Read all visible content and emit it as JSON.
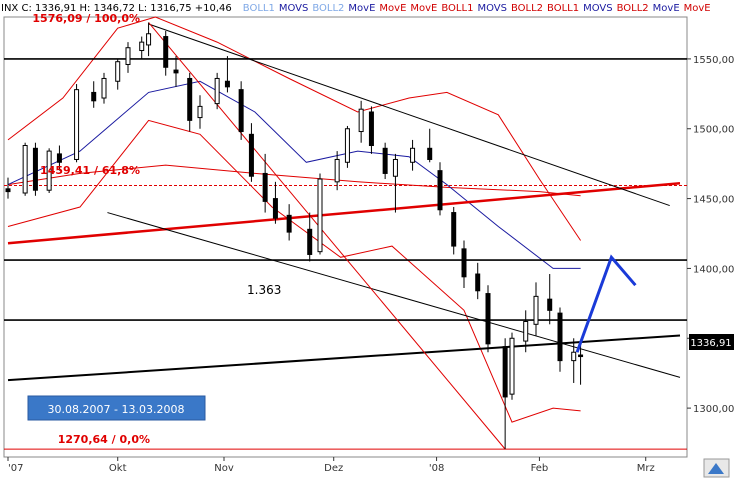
{
  "header": {
    "ohlc": "INX C: 1336,91 H: 1346,72 L: 1316,75 +10,46",
    "indicators": [
      {
        "label": "BOLL1",
        "color": "#7fa8e6"
      },
      {
        "label": "MOVS",
        "color": "#1a1aa0"
      },
      {
        "label": "BOLL2",
        "color": "#7fa8e6"
      },
      {
        "label": "MovE",
        "color": "#1a1aa0"
      },
      {
        "label": "MovE",
        "color": "#d00000"
      },
      {
        "label": "MovE",
        "color": "#d00000"
      },
      {
        "label": "BOLL1",
        "color": "#d00000"
      },
      {
        "label": "MOVS",
        "color": "#1a1aa0"
      },
      {
        "label": "BOLL2",
        "color": "#d00000"
      },
      {
        "label": "BOLL1",
        "color": "#d00000"
      },
      {
        "label": "MOVS",
        "color": "#1a1aa0"
      },
      {
        "label": "BOLL2",
        "color": "#d00000"
      },
      {
        "label": "MovE",
        "color": "#1a1aa0"
      },
      {
        "label": "MovE",
        "color": "#d00000"
      }
    ]
  },
  "last_price_badge": "1336,91",
  "period_badge": "30.08.2007 - 13.03.2008",
  "annotations": {
    "fib_100": "1576,09 / 100,0%",
    "fib_618": "1459,41 / 61,8%",
    "fib_0": "1270,64 / 0,0%",
    "level_label": "1.363"
  },
  "colors": {
    "candle": "#000000",
    "boll_red": "#e00000",
    "movs_blue": "#1a1aa0",
    "forecast_blue": "#1a3ad8",
    "badge_bg": "#3a78c8",
    "badge_text": "#ffffff"
  },
  "chart_data": {
    "type": "candlestick",
    "ylim": [
      1265,
      1580
    ],
    "xlim": [
      "2007-08-30",
      "2008-03-13"
    ],
    "y_ticks": [
      {
        "value": 1300,
        "label": "1300,00"
      },
      {
        "value": 1350,
        "label": "1350,00"
      },
      {
        "value": 1400,
        "label": "1400,00"
      },
      {
        "value": 1450,
        "label": "1450,00"
      },
      {
        "value": 1500,
        "label": "1500,00"
      },
      {
        "value": 1550,
        "label": "1550,00"
      }
    ],
    "x_ticks": [
      {
        "date": "2007-08-30",
        "label": "'07"
      },
      {
        "date": "2007-10-01",
        "label": "Okt"
      },
      {
        "date": "2007-11-01",
        "label": "Nov"
      },
      {
        "date": "2007-12-03",
        "label": "Dez"
      },
      {
        "date": "2008-01-02",
        "label": "'08"
      },
      {
        "date": "2008-02-01",
        "label": "Feb"
      },
      {
        "date": "2008-03-03",
        "label": "Mrz"
      }
    ],
    "horizontal_levels": [
      {
        "value": 1550,
        "color": "#000000"
      },
      {
        "value": 1406,
        "color": "#000000"
      },
      {
        "value": 1363,
        "color": "#000000"
      },
      {
        "value": 1459.41,
        "color": "#e00000",
        "style": "dashed"
      },
      {
        "value": 1270.64,
        "color": "#e00000"
      }
    ],
    "trendlines": [
      {
        "from": [
          "2007-08-30",
          1320
        ],
        "to": [
          "2008-03-13",
          1352
        ],
        "color": "#000000",
        "width": 2
      },
      {
        "from": [
          "2007-08-30",
          1418
        ],
        "to": [
          "2008-03-13",
          1461
        ],
        "color": "#e00000",
        "width": 2.5
      },
      {
        "from": [
          "2007-10-10",
          1575
        ],
        "to": [
          "2008-03-10",
          1445
        ],
        "color": "#000000",
        "width": 1
      },
      {
        "from": [
          "2007-09-28",
          1440
        ],
        "to": [
          "2008-03-13",
          1322
        ],
        "color": "#000000",
        "width": 1
      },
      {
        "from": [
          "2007-10-10",
          1576.09
        ],
        "to": [
          "2008-01-22",
          1270.64
        ],
        "color": "#e00000",
        "width": 1
      }
    ],
    "forecast_path": [
      [
        "2008-02-12",
        1340
      ],
      [
        "2008-02-22",
        1408
      ],
      [
        "2008-02-29",
        1388
      ]
    ],
    "candles": [
      [
        "2007-08-30",
        1457,
        1465,
        1450,
        1455
      ],
      [
        "2007-09-04",
        1454,
        1490,
        1452,
        1488
      ],
      [
        "2007-09-07",
        1486,
        1490,
        1452,
        1456
      ],
      [
        "2007-09-11",
        1456,
        1486,
        1454,
        1484
      ],
      [
        "2007-09-14",
        1482,
        1488,
        1470,
        1476
      ],
      [
        "2007-09-19",
        1478,
        1532,
        1476,
        1528
      ],
      [
        "2007-09-24",
        1526,
        1534,
        1515,
        1520
      ],
      [
        "2007-09-27",
        1522,
        1540,
        1518,
        1536
      ],
      [
        "2007-10-01",
        1534,
        1550,
        1528,
        1548
      ],
      [
        "2007-10-04",
        1546,
        1562,
        1540,
        1558
      ],
      [
        "2007-10-08",
        1556,
        1566,
        1550,
        1562
      ],
      [
        "2007-10-10",
        1560,
        1576,
        1552,
        1568
      ],
      [
        "2007-10-15",
        1566,
        1570,
        1538,
        1544
      ],
      [
        "2007-10-18",
        1542,
        1552,
        1530,
        1540
      ],
      [
        "2007-10-22",
        1536,
        1540,
        1498,
        1506
      ],
      [
        "2007-10-25",
        1508,
        1524,
        1500,
        1516
      ],
      [
        "2007-10-30",
        1518,
        1540,
        1514,
        1536
      ],
      [
        "2007-11-02",
        1534,
        1552,
        1526,
        1530
      ],
      [
        "2007-11-06",
        1528,
        1534,
        1492,
        1498
      ],
      [
        "2007-11-09",
        1496,
        1504,
        1462,
        1466
      ],
      [
        "2007-11-13",
        1468,
        1482,
        1440,
        1448
      ],
      [
        "2007-11-16",
        1450,
        1462,
        1432,
        1436
      ],
      [
        "2007-11-20",
        1438,
        1446,
        1420,
        1426
      ],
      [
        "2007-11-26",
        1428,
        1440,
        1405,
        1410
      ],
      [
        "2007-11-29",
        1412,
        1468,
        1410,
        1464
      ],
      [
        "2007-12-04",
        1462,
        1484,
        1456,
        1478
      ],
      [
        "2007-12-07",
        1476,
        1502,
        1472,
        1500
      ],
      [
        "2007-12-11",
        1498,
        1520,
        1490,
        1514
      ],
      [
        "2007-12-14",
        1512,
        1516,
        1482,
        1488
      ],
      [
        "2007-12-18",
        1486,
        1490,
        1464,
        1468
      ],
      [
        "2007-12-21",
        1466,
        1482,
        1440,
        1478
      ],
      [
        "2007-12-26",
        1476,
        1492,
        1470,
        1486
      ],
      [
        "2007-12-31",
        1486,
        1500,
        1476,
        1478
      ],
      [
        "2008-01-03",
        1470,
        1476,
        1438,
        1442
      ],
      [
        "2008-01-07",
        1440,
        1444,
        1410,
        1416
      ],
      [
        "2008-01-10",
        1414,
        1420,
        1386,
        1394
      ],
      [
        "2008-01-14",
        1396,
        1404,
        1378,
        1384
      ],
      [
        "2008-01-17",
        1382,
        1388,
        1340,
        1346
      ],
      [
        "2008-01-22",
        1344,
        1350,
        1270.64,
        1308
      ],
      [
        "2008-01-24",
        1310,
        1354,
        1306,
        1350
      ],
      [
        "2008-01-28",
        1348,
        1370,
        1340,
        1362
      ],
      [
        "2008-01-31",
        1360,
        1390,
        1352,
        1380
      ],
      [
        "2008-02-04",
        1378,
        1396,
        1360,
        1370
      ],
      [
        "2008-02-07",
        1368,
        1372,
        1326,
        1334
      ],
      [
        "2008-02-11",
        1334,
        1350,
        1318,
        1340
      ],
      [
        "2008-02-13",
        1338,
        1346.72,
        1316.75,
        1336.91
      ]
    ],
    "bollinger_red": {
      "upper": [
        [
          "2007-08-30",
          1492
        ],
        [
          "2007-09-15",
          1522
        ],
        [
          "2007-10-01",
          1572
        ],
        [
          "2007-10-12",
          1580
        ],
        [
          "2007-10-30",
          1562
        ],
        [
          "2007-11-20",
          1536
        ],
        [
          "2007-12-10",
          1512
        ],
        [
          "2007-12-25",
          1522
        ],
        [
          "2008-01-05",
          1526
        ],
        [
          "2008-01-20",
          1510
        ],
        [
          "2008-02-01",
          1464
        ],
        [
          "2008-02-13",
          1420
        ]
      ],
      "middle": [
        [
          "2007-08-30",
          1460
        ],
        [
          "2007-09-20",
          1468
        ],
        [
          "2007-10-15",
          1474
        ],
        [
          "2007-11-10",
          1468
        ],
        [
          "2007-12-10",
          1462
        ],
        [
          "2008-01-05",
          1458
        ],
        [
          "2008-02-01",
          1455
        ],
        [
          "2008-02-13",
          1452
        ]
      ],
      "lower": [
        [
          "2007-08-30",
          1430
        ],
        [
          "2007-09-20",
          1444
        ],
        [
          "2007-10-10",
          1506
        ],
        [
          "2007-10-25",
          1496
        ],
        [
          "2007-11-15",
          1444
        ],
        [
          "2007-12-05",
          1408
        ],
        [
          "2007-12-20",
          1416
        ],
        [
          "2008-01-10",
          1370
        ],
        [
          "2008-01-24",
          1290
        ],
        [
          "2008-02-05",
          1300
        ],
        [
          "2008-02-13",
          1298
        ]
      ]
    },
    "moving_average_blue": [
      [
        "2007-08-30",
        1460
      ],
      [
        "2007-09-20",
        1484
      ],
      [
        "2007-10-10",
        1526
      ],
      [
        "2007-10-25",
        1534
      ],
      [
        "2007-11-10",
        1512
      ],
      [
        "2007-11-25",
        1476
      ],
      [
        "2007-12-10",
        1484
      ],
      [
        "2007-12-25",
        1480
      ],
      [
        "2008-01-05",
        1460
      ],
      [
        "2008-01-20",
        1430
      ],
      [
        "2008-02-05",
        1400
      ],
      [
        "2008-02-13",
        1400
      ]
    ]
  }
}
